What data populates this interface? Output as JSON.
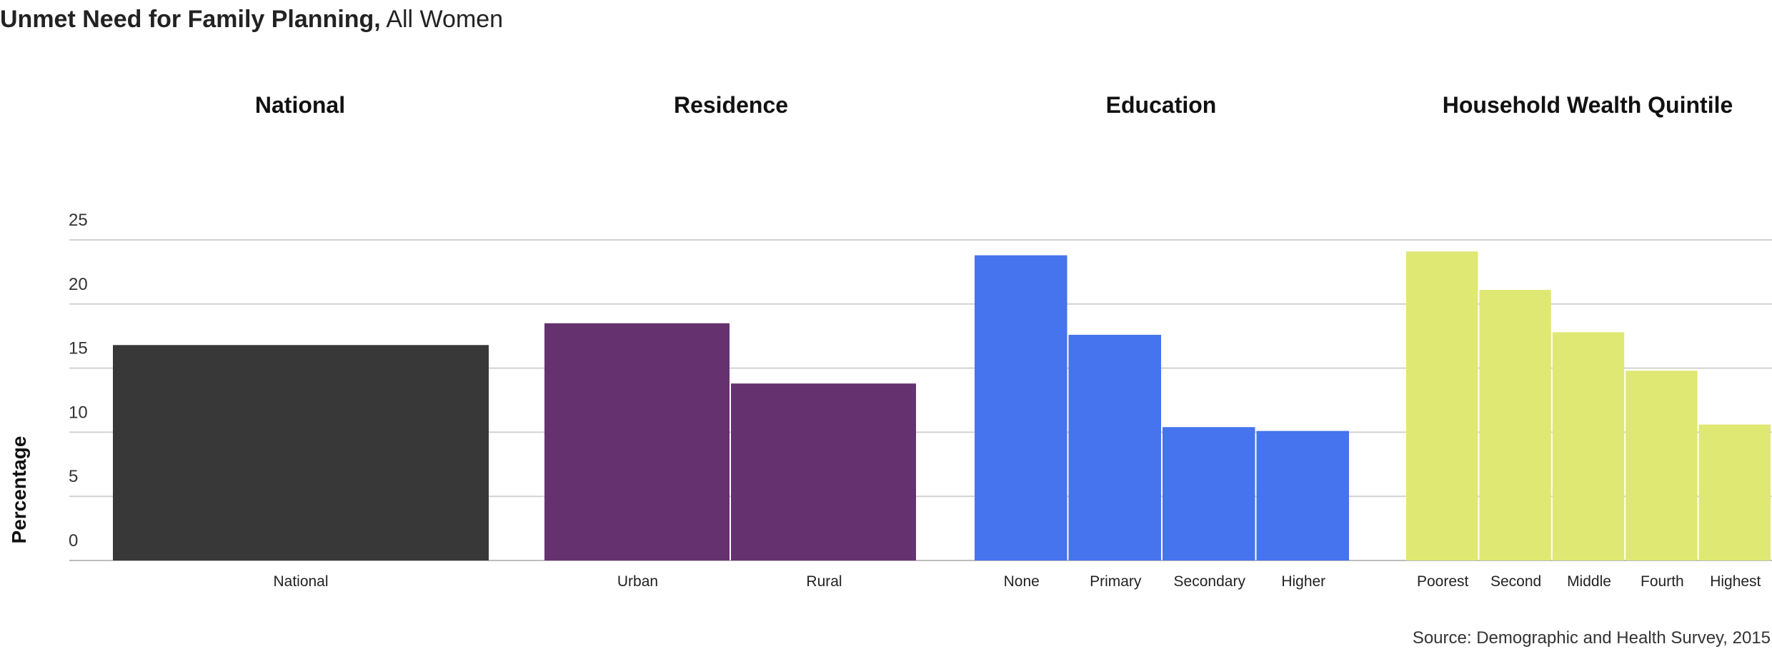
{
  "title": {
    "bold": "Unmet Need for Family Planning,",
    "light": "All Women"
  },
  "source": "Source: Demographic and Health Survey, 2015",
  "chart_data": {
    "type": "bar",
    "ylabel": "Percentage",
    "ylim": [
      0,
      25
    ],
    "yticks": [
      0,
      5,
      10,
      15,
      20,
      25
    ],
    "grid": true,
    "groups": [
      {
        "name": "National",
        "color": "#383838",
        "categories": [
          "National"
        ],
        "values": [
          16.8
        ]
      },
      {
        "name": "Residence",
        "color": "#65326f",
        "categories": [
          "Urban",
          "Rural"
        ],
        "values": [
          18.5,
          13.8
        ]
      },
      {
        "name": "Education",
        "color": "#4673ee",
        "categories": [
          "None",
          "Primary",
          "Secondary",
          "Higher"
        ],
        "values": [
          23.8,
          17.6,
          10.4,
          10.1
        ]
      },
      {
        "name": "Household Wealth Quintile",
        "color": "#e0e874",
        "categories": [
          "Poorest",
          "Second",
          "Middle",
          "Fourth",
          "Highest"
        ],
        "values": [
          24.1,
          21.1,
          17.8,
          14.8,
          10.6
        ]
      }
    ]
  }
}
